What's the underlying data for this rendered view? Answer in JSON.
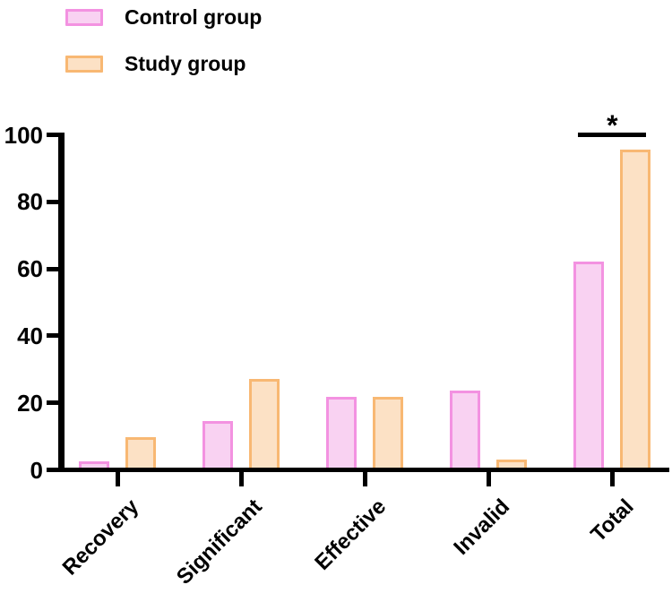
{
  "figure": {
    "background": "#ffffff"
  },
  "legend": {
    "position": "top-left",
    "items": [
      {
        "label": "Control group",
        "fill": "#f9d2f2",
        "border": "#f392e1"
      },
      {
        "label": "Study group",
        "fill": "#fce1c5",
        "border": "#f8b873"
      }
    ]
  },
  "chart_data": {
    "type": "bar",
    "title": "",
    "xlabel": "",
    "ylabel": "",
    "categories": [
      "Recovery",
      "Significant",
      "Effective",
      "Invalid",
      "Total"
    ],
    "series": [
      {
        "name": "Control group",
        "fill": "#f9d2f2",
        "border": "#f392e1",
        "values": [
          2,
          14,
          21,
          23,
          61.5
        ]
      },
      {
        "name": "Study group",
        "fill": "#fce1c5",
        "border": "#f8b873",
        "values": [
          9,
          26.5,
          21,
          2.5,
          95
        ]
      }
    ],
    "ylim": [
      0,
      100
    ],
    "yticks": [
      0,
      20,
      40,
      60,
      80,
      100
    ],
    "grid": false,
    "legend_position": "top-left",
    "annotations": [
      {
        "type": "significance-bracket",
        "text": "*",
        "category": "Total",
        "y_value": 100
      }
    ]
  }
}
